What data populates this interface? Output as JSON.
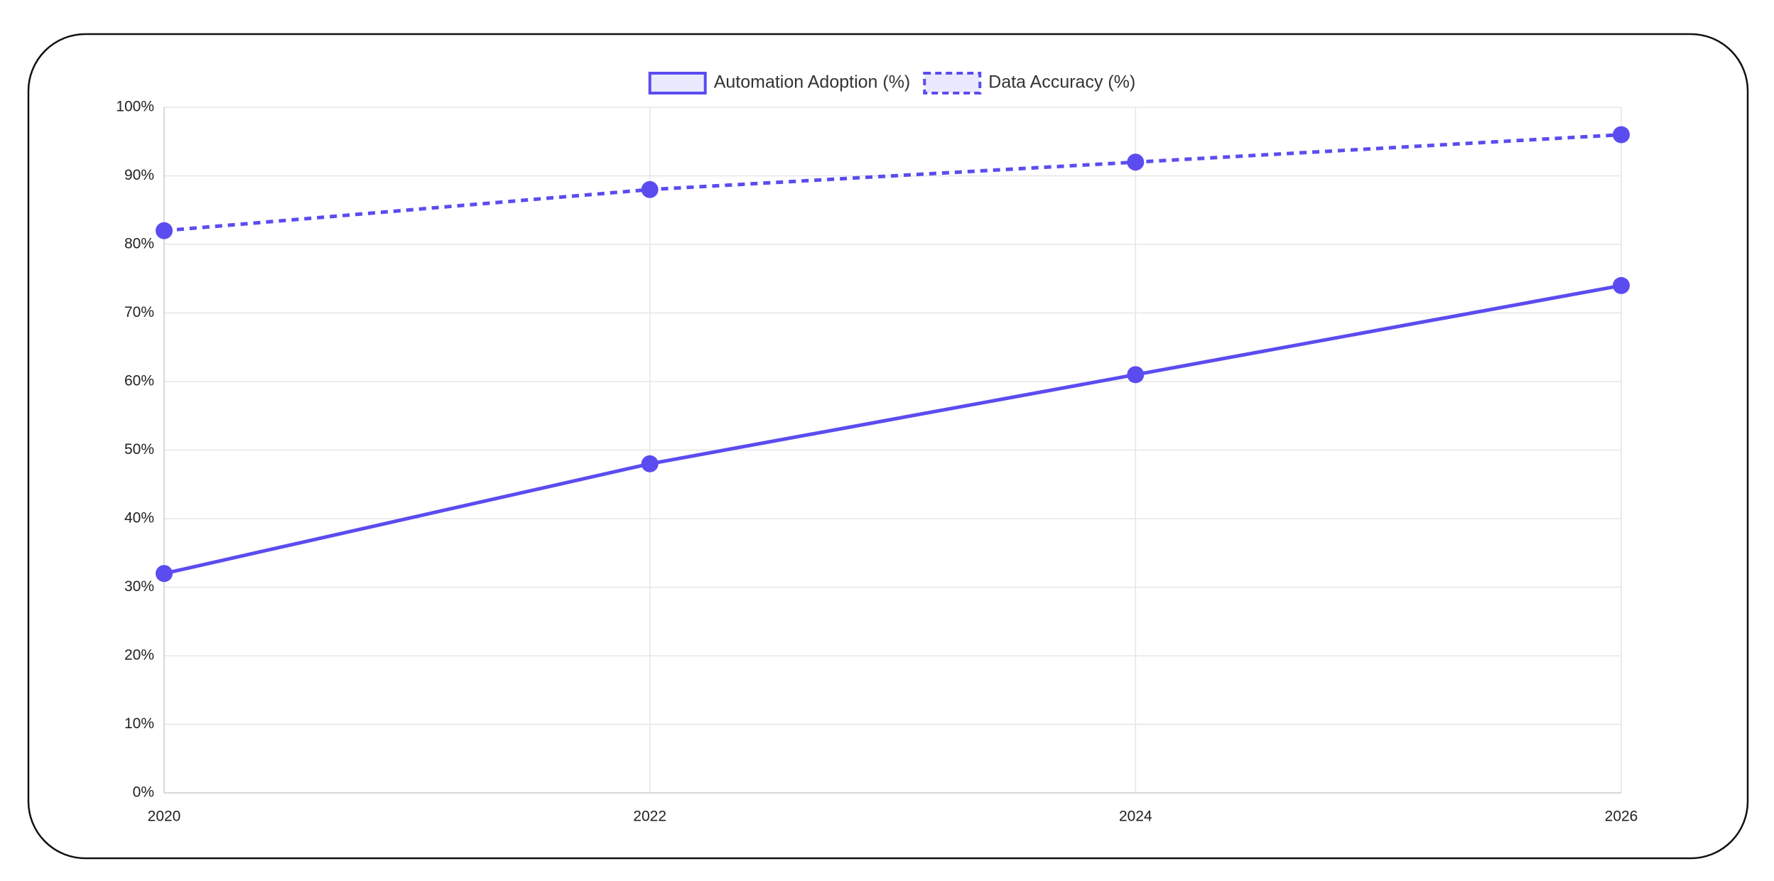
{
  "chart_data": {
    "type": "line",
    "x": [
      2020,
      2022,
      2024,
      2026
    ],
    "xlim": [
      2020,
      2026
    ],
    "xticks": [
      2020,
      2022,
      2024,
      2026
    ],
    "ylim": [
      0,
      100
    ],
    "yticks": [
      {
        "value": 0,
        "label": "0%"
      },
      {
        "value": 10,
        "label": "10%"
      },
      {
        "value": 20,
        "label": "20%"
      },
      {
        "value": 30,
        "label": "30%"
      },
      {
        "value": 40,
        "label": "40%"
      },
      {
        "value": 50,
        "label": "50%"
      },
      {
        "value": 60,
        "label": "60%"
      },
      {
        "value": 70,
        "label": "70%"
      },
      {
        "value": 80,
        "label": "80%"
      },
      {
        "value": 90,
        "label": "90%"
      },
      {
        "value": 100,
        "label": "100%"
      }
    ],
    "grid": true,
    "legend": "top",
    "series": [
      {
        "name": "Automation Adoption (%)",
        "color": "#5b4cf0",
        "dash": "solid",
        "values": [
          32,
          48,
          61,
          74
        ]
      },
      {
        "name": "Data Accuracy (%)",
        "color": "#5b4cf0",
        "dash": "dashed",
        "values": [
          82,
          88,
          92,
          96
        ]
      }
    ]
  }
}
